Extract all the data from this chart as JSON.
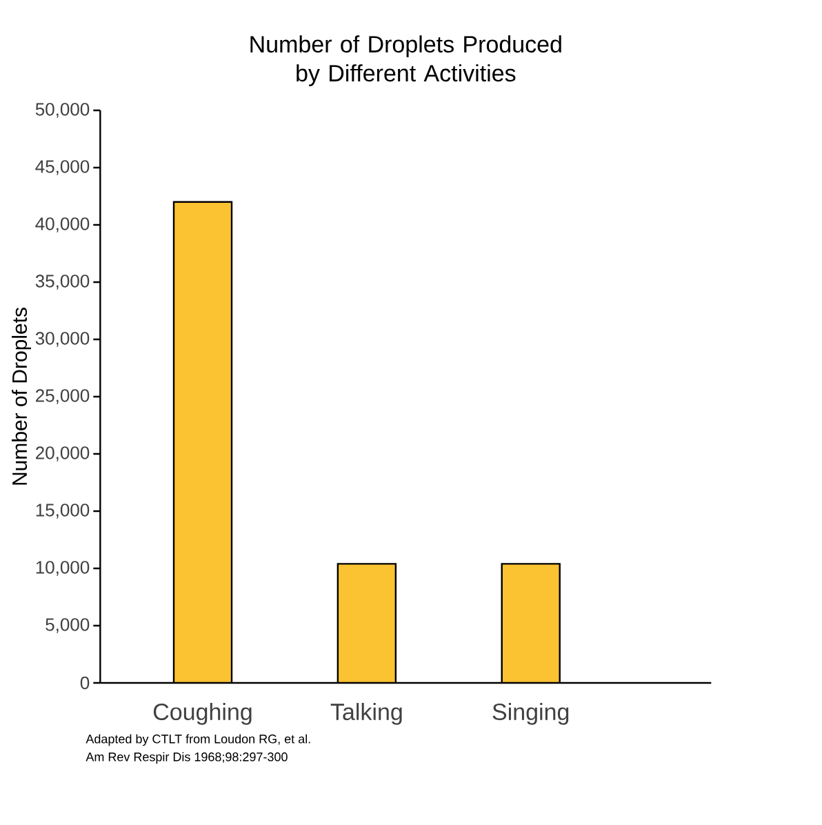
{
  "chart_data": {
    "type": "bar",
    "title": "Number of Droplets Produced by Different Activities",
    "ylabel": "Number of Droplets",
    "categories": [
      "Coughing",
      "Talking",
      "Singing"
    ],
    "values": [
      42000,
      10400,
      10400
    ],
    "color": "#fbc232",
    "ylim": [
      0,
      50000
    ],
    "yticks": [
      {
        "value": 0,
        "label": "0"
      },
      {
        "value": 5000,
        "label": "5,000"
      },
      {
        "value": 10000,
        "label": "10,000"
      },
      {
        "value": 15000,
        "label": "15,000"
      },
      {
        "value": 20000,
        "label": "20,000"
      },
      {
        "value": 25000,
        "label": "25,000"
      },
      {
        "value": 30000,
        "label": "30,000"
      },
      {
        "value": 35000,
        "label": "35,000"
      },
      {
        "value": 40000,
        "label": "40,000"
      },
      {
        "value": 45000,
        "label": "45,000"
      },
      {
        "value": 50000,
        "label": "50,000"
      }
    ],
    "annotations": [
      "Adapted by CTLT from Loudon RG, et al.",
      "Am Rev Respir Dis 1968;98:297-300"
    ]
  }
}
